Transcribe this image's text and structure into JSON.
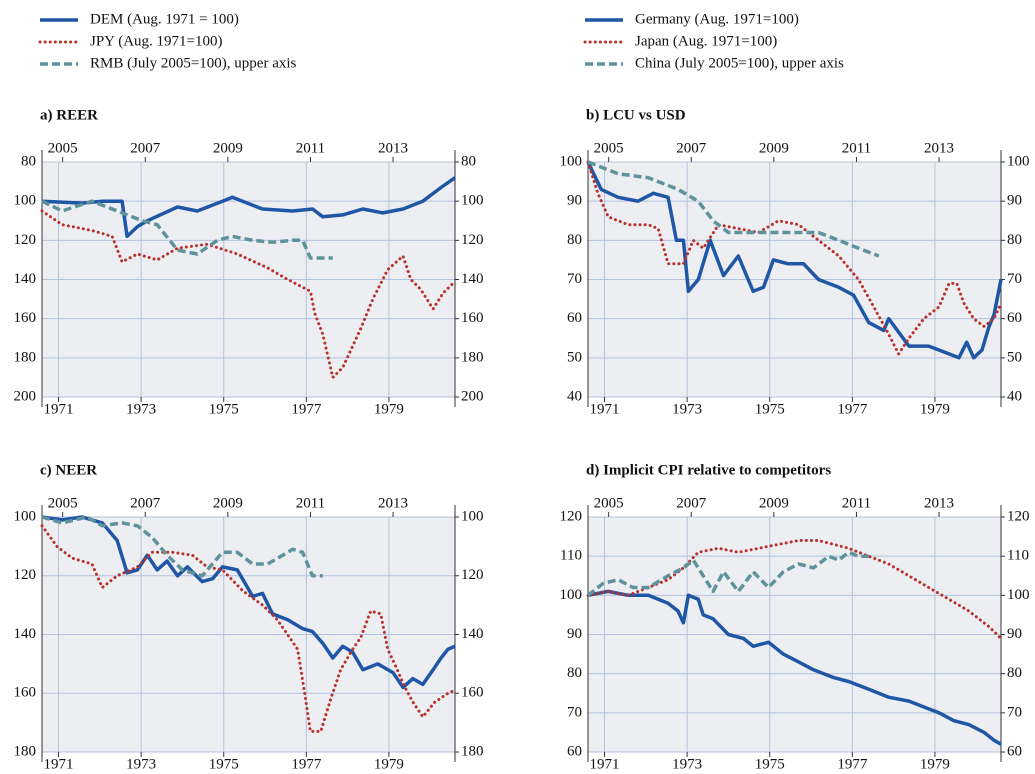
{
  "chart_data": [
    {
      "type": "line",
      "title": "a) REER",
      "y_inverted": true,
      "grid": true,
      "xlim": [
        1970.6,
        1980.6
      ],
      "xticks": [
        1971,
        1973,
        1975,
        1977,
        1979
      ],
      "x2lim": [
        2004.5,
        2014.5
      ],
      "x2ticks": [
        2005,
        2007,
        2009,
        2011,
        2013
      ],
      "ylim": [
        80,
        200
      ],
      "yticks": [
        80,
        100,
        120,
        140,
        160,
        180,
        200
      ],
      "y2lim": [
        80,
        200
      ],
      "y2ticks": [
        80,
        100,
        120,
        140,
        160,
        180,
        200
      ],
      "series": [
        {
          "name": "DEM (Aug. 1971 = 100)",
          "color": "#1f56a5",
          "style": "solid",
          "x": [
            1970.6,
            1971.57,
            1972.06,
            1972.54,
            1972.66,
            1972.91,
            1973.15,
            1973.88,
            1974.36,
            1974.97,
            1975.21,
            1975.94,
            1976.67,
            1977.15,
            1977.4,
            1977.88,
            1978.37,
            1978.85,
            1979.34,
            1979.82,
            1980.26,
            1980.6
          ],
          "values": [
            100,
            101,
            100,
            100,
            118,
            113,
            110,
            103,
            105,
            100,
            98,
            104,
            105,
            104,
            108,
            107,
            104,
            106,
            104,
            100,
            93,
            88
          ]
        },
        {
          "name": "JPY (Aug. 1971=100)",
          "color": "#b8312a",
          "style": "dotted",
          "x": [
            1970.6,
            1971.09,
            1971.81,
            1972.3,
            1972.54,
            1972.91,
            1973.39,
            1973.88,
            1974.6,
            1975.33,
            1976.06,
            1976.55,
            1977.1,
            1977.2,
            1977.4,
            1977.64,
            1977.88,
            1978.32,
            1978.61,
            1978.97,
            1979.34,
            1979.53,
            1979.77,
            1980.07,
            1980.31,
            1980.6
          ],
          "values": [
            105,
            112,
            115,
            118,
            131,
            127,
            130,
            124,
            122,
            127,
            134,
            140,
            146,
            157,
            168,
            190,
            185,
            165,
            150,
            135,
            128,
            140,
            145,
            155,
            147,
            141
          ]
        },
        {
          "name": "RMB (July 2005=100), upper axis",
          "color": "#5f939c",
          "style": "dashed",
          "xaxis": "x2",
          "axis": "y2",
          "x": [
            2004.5,
            2004.99,
            2005.71,
            2006.32,
            2006.93,
            2007.29,
            2007.78,
            2008.26,
            2008.75,
            2009.11,
            2009.6,
            2010.08,
            2010.57,
            2010.81,
            2011.0,
            2011.54
          ],
          "values": [
            100,
            105,
            100,
            105,
            110,
            112,
            125,
            127,
            120,
            118,
            120,
            121,
            120,
            120,
            129,
            129
          ]
        }
      ]
    },
    {
      "type": "line",
      "title": "b) LCU vs USD",
      "y_inverted": false,
      "grid": true,
      "xlim": [
        1970.6,
        1980.6
      ],
      "xticks": [
        1971,
        1973,
        1975,
        1977,
        1979
      ],
      "x2lim": [
        2004.5,
        2014.5
      ],
      "x2ticks": [
        2005,
        2007,
        2009,
        2011,
        2013
      ],
      "ylim": [
        40,
        100
      ],
      "yticks": [
        40,
        50,
        60,
        70,
        80,
        90,
        100
      ],
      "y2lim": [
        40,
        100
      ],
      "y2ticks": [
        40,
        50,
        60,
        70,
        80,
        90,
        100
      ],
      "series": [
        {
          "name": "Germany (Aug. 1971=100)",
          "color": "#1f56a5",
          "style": "solid",
          "x": [
            1970.6,
            1970.92,
            1971.33,
            1971.81,
            1972.18,
            1972.54,
            1972.74,
            1972.91,
            1973.03,
            1973.27,
            1973.56,
            1973.88,
            1974.24,
            1974.6,
            1974.85,
            1975.09,
            1975.45,
            1975.82,
            1976.18,
            1976.67,
            1977.03,
            1977.4,
            1977.76,
            1977.88,
            1978.37,
            1978.85,
            1979.34,
            1979.58,
            1979.77,
            1979.94,
            1980.14,
            1980.31,
            1980.43,
            1980.6
          ],
          "values": [
            100,
            93,
            91,
            90,
            92,
            91,
            80,
            80,
            67,
            70,
            80,
            71,
            76,
            67,
            68,
            75,
            74,
            74,
            70,
            68,
            66,
            59,
            57,
            60,
            53,
            53,
            51,
            50,
            54,
            50,
            52,
            58,
            61,
            70
          ]
        },
        {
          "name": "Japan (Aug. 1971=100)",
          "color": "#b8312a",
          "style": "dotted",
          "x": [
            1970.6,
            1970.84,
            1971.09,
            1971.57,
            1972.06,
            1972.3,
            1972.54,
            1972.91,
            1973.15,
            1973.39,
            1973.76,
            1974.24,
            1974.73,
            1975.21,
            1975.7,
            1976.18,
            1976.67,
            1977.15,
            1977.52,
            1977.88,
            1978.12,
            1978.37,
            1978.73,
            1979.1,
            1979.34,
            1979.53,
            1979.7,
            1979.94,
            1980.19,
            1980.43,
            1980.6
          ],
          "values": [
            100,
            92,
            86,
            84,
            84,
            83,
            74,
            74,
            80,
            78,
            84,
            83,
            82,
            85,
            84,
            80,
            76,
            70,
            63,
            56,
            51,
            55,
            60,
            63,
            69,
            69,
            64,
            60,
            58,
            60,
            64
          ]
        },
        {
          "name": "China (July 2005=100), upper axis",
          "color": "#5f939c",
          "style": "dashed",
          "xaxis": "x2",
          "axis": "y2",
          "x": [
            2004.5,
            2005.23,
            2005.96,
            2006.68,
            2007.17,
            2007.53,
            2007.9,
            2008.63,
            2009.35,
            2010.08,
            2010.57,
            2011.05,
            2011.54
          ],
          "values": [
            100,
            97,
            96,
            93,
            90,
            85,
            82,
            82,
            82,
            82,
            80,
            78,
            76
          ]
        }
      ]
    },
    {
      "type": "line",
      "title": "c) NEER",
      "y_inverted": true,
      "grid": true,
      "xlim": [
        1970.6,
        1980.6
      ],
      "xticks": [
        1971,
        1973,
        1975,
        1977,
        1979
      ],
      "x2lim": [
        2004.5,
        2014.5
      ],
      "x2ticks": [
        2005,
        2007,
        2009,
        2011,
        2013
      ],
      "ylim": [
        100,
        180
      ],
      "yticks": [
        100,
        120,
        140,
        160,
        180
      ],
      "y2lim": [
        100,
        180
      ],
      "y2ticks": [
        100,
        120,
        140,
        160,
        180
      ],
      "series": [
        {
          "color": "#1f56a5",
          "style": "solid",
          "x": [
            1970.6,
            1971.09,
            1971.57,
            1972.06,
            1972.42,
            1972.66,
            1972.91,
            1973.15,
            1973.39,
            1973.63,
            1973.88,
            1974.12,
            1974.48,
            1974.73,
            1974.97,
            1975.33,
            1975.7,
            1975.94,
            1976.18,
            1976.55,
            1976.91,
            1977.15,
            1977.4,
            1977.64,
            1977.88,
            1978.12,
            1978.37,
            1978.73,
            1979.1,
            1979.34,
            1979.58,
            1979.82,
            1980.07,
            1980.26,
            1980.43,
            1980.6
          ],
          "values": [
            100,
            101,
            100,
            102,
            108,
            119,
            118,
            113,
            118,
            115,
            120,
            117,
            122,
            121,
            117,
            118,
            127,
            126,
            133,
            135,
            138,
            139,
            143,
            148,
            144,
            146,
            152,
            150,
            153,
            158,
            155,
            157,
            152,
            148,
            145,
            144
          ]
        },
        {
          "color": "#b8312a",
          "style": "dotted",
          "x": [
            1970.6,
            1970.96,
            1971.33,
            1971.81,
            1972.06,
            1972.42,
            1972.91,
            1973.27,
            1973.76,
            1974.24,
            1974.6,
            1974.97,
            1975.45,
            1975.94,
            1976.3,
            1976.79,
            1976.96,
            1977.1,
            1977.35,
            1977.59,
            1977.83,
            1978.08,
            1978.32,
            1978.56,
            1978.8,
            1978.97,
            1979.14,
            1979.39,
            1979.58,
            1979.82,
            1980.11,
            1980.43,
            1980.6
          ],
          "values": [
            103,
            110,
            114,
            116,
            124,
            120,
            117,
            112,
            112,
            113,
            117,
            118,
            125,
            130,
            135,
            145,
            160,
            173,
            173,
            162,
            152,
            146,
            141,
            132,
            133,
            145,
            150,
            158,
            163,
            168,
            163,
            160,
            159
          ]
        },
        {
          "color": "#5f939c",
          "style": "dashed",
          "xaxis": "x2",
          "axis": "y2",
          "x": [
            2004.5,
            2004.99,
            2005.59,
            2005.96,
            2006.44,
            2006.81,
            2007.17,
            2007.53,
            2007.9,
            2008.38,
            2008.87,
            2009.23,
            2009.6,
            2009.96,
            2010.33,
            2010.57,
            2010.81,
            2011.05,
            2011.3
          ],
          "values": [
            100,
            102,
            100,
            103,
            102,
            103,
            107,
            113,
            118,
            120,
            112,
            112,
            116,
            116,
            113,
            111,
            112,
            120,
            120
          ]
        }
      ]
    },
    {
      "type": "line",
      "title": "d) Implicit CPI relative to competitors",
      "y_inverted": false,
      "grid": true,
      "xlim": [
        1970.6,
        1980.6
      ],
      "xticks": [
        1971,
        1973,
        1975,
        1977,
        1979
      ],
      "x2lim": [
        2004.5,
        2014.5
      ],
      "x2ticks": [
        2005,
        2007,
        2009,
        2011,
        2013
      ],
      "ylim": [
        60,
        120
      ],
      "yticks": [
        60,
        70,
        80,
        90,
        100,
        110,
        120
      ],
      "y2lim": [
        60,
        120
      ],
      "y2ticks": [
        60,
        70,
        80,
        90,
        100,
        110,
        120
      ],
      "series": [
        {
          "color": "#1f56a5",
          "style": "solid",
          "x": [
            1970.6,
            1971.09,
            1971.57,
            1972.06,
            1972.54,
            1972.78,
            1972.91,
            1973.03,
            1973.27,
            1973.39,
            1973.63,
            1974.0,
            1974.36,
            1974.6,
            1974.97,
            1975.33,
            1975.7,
            1976.06,
            1976.55,
            1976.91,
            1977.4,
            1977.88,
            1978.37,
            1978.85,
            1979.1,
            1979.46,
            1979.82,
            1980.19,
            1980.43,
            1980.6
          ],
          "values": [
            100,
            101,
            100,
            100,
            98,
            96,
            93,
            100,
            99,
            95,
            94,
            90,
            89,
            87,
            88,
            85,
            83,
            81,
            79,
            78,
            76,
            74,
            73,
            71,
            70,
            68,
            67,
            65,
            63,
            62
          ]
        },
        {
          "color": "#b8312a",
          "style": "dotted",
          "x": [
            1970.6,
            1971.09,
            1971.57,
            1972.06,
            1972.54,
            1972.91,
            1973.27,
            1973.76,
            1974.24,
            1974.73,
            1975.21,
            1975.7,
            1976.18,
            1976.55,
            1976.91,
            1977.4,
            1977.88,
            1978.37,
            1978.85,
            1979.34,
            1979.82,
            1980.31,
            1980.6
          ],
          "values": [
            100,
            101,
            100,
            102,
            104,
            107,
            111,
            112,
            111,
            112,
            113,
            114,
            114,
            113,
            112,
            110,
            108,
            105,
            102,
            99,
            96,
            92,
            89
          ]
        },
        {
          "color": "#5f939c",
          "style": "dashed",
          "xaxis": "x2",
          "axis": "y2",
          "x": [
            2004.5,
            2004.86,
            2005.23,
            2005.59,
            2005.96,
            2006.44,
            2006.81,
            2007.05,
            2007.29,
            2007.53,
            2007.78,
            2008.14,
            2008.5,
            2008.87,
            2009.23,
            2009.6,
            2009.96,
            2010.33,
            2010.57,
            2010.81,
            2011.05,
            2011.3
          ],
          "values": [
            100,
            103,
            104,
            102,
            102,
            105,
            107,
            109,
            105,
            101,
            106,
            101,
            106,
            102,
            106,
            108,
            107,
            110,
            109,
            111,
            110,
            110
          ]
        }
      ]
    }
  ]
}
